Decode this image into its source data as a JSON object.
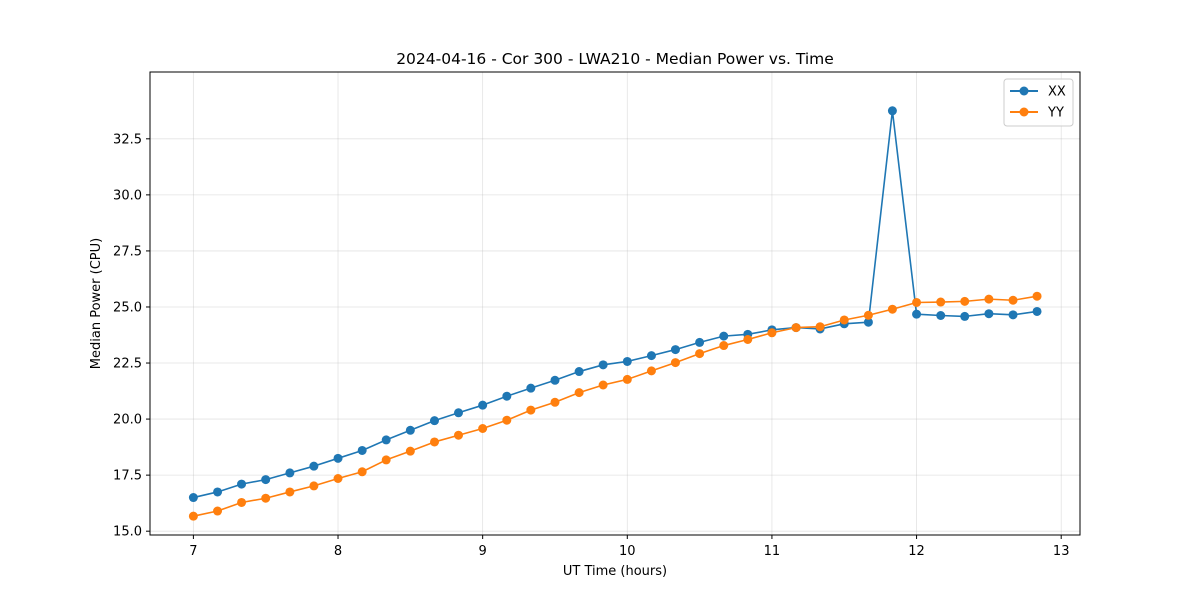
{
  "chart_data": {
    "type": "line",
    "title": "2024-04-16 - Cor 300 - LWA210 - Median Power vs. Time",
    "xlabel": "UT Time (hours)",
    "ylabel": "Median Power (CPU)",
    "xlim": [
      6.7,
      13.13
    ],
    "ylim": [
      14.83,
      35.48
    ],
    "xticks": [
      7,
      8,
      9,
      10,
      11,
      12,
      13
    ],
    "xtick_labels": [
      "7",
      "8",
      "9",
      "10",
      "11",
      "12",
      "13"
    ],
    "yticks": [
      15.0,
      17.5,
      20.0,
      22.5,
      25.0,
      27.5,
      30.0,
      32.5
    ],
    "ytick_labels": [
      "15.0",
      "17.5",
      "20.0",
      "22.5",
      "25.0",
      "27.5",
      "30.0",
      "32.5"
    ],
    "grid": true,
    "legend_position": "top-right",
    "x": [
      7.0,
      7.167,
      7.333,
      7.5,
      7.667,
      7.833,
      8.0,
      8.167,
      8.333,
      8.5,
      8.667,
      8.833,
      9.0,
      9.167,
      9.333,
      9.5,
      9.667,
      9.833,
      10.0,
      10.167,
      10.333,
      10.5,
      10.667,
      10.833,
      11.0,
      11.167,
      11.333,
      11.5,
      11.667,
      11.833,
      12.0,
      12.167,
      12.333,
      12.5,
      12.667,
      12.833
    ],
    "series": [
      {
        "name": "XX",
        "color": "#1f77b4",
        "values": [
          16.5,
          16.75,
          17.1,
          17.3,
          17.6,
          17.9,
          18.25,
          18.6,
          19.07,
          19.5,
          19.93,
          20.28,
          20.62,
          21.02,
          21.38,
          21.73,
          22.12,
          22.42,
          22.57,
          22.83,
          23.1,
          23.42,
          23.7,
          23.78,
          23.98,
          24.08,
          24.02,
          24.25,
          24.32,
          33.75,
          24.68,
          24.62,
          24.58,
          24.7,
          24.65,
          24.8
        ]
      },
      {
        "name": "YY",
        "color": "#ff7f0e",
        "values": [
          15.67,
          15.9,
          16.28,
          16.47,
          16.75,
          17.02,
          17.35,
          17.65,
          18.18,
          18.57,
          18.98,
          19.28,
          19.58,
          19.95,
          20.4,
          20.75,
          21.18,
          21.52,
          21.77,
          22.15,
          22.52,
          22.92,
          23.28,
          23.55,
          23.85,
          24.08,
          24.12,
          24.42,
          24.63,
          24.9,
          25.2,
          25.22,
          25.25,
          25.35,
          25.3,
          25.48
        ]
      }
    ]
  }
}
